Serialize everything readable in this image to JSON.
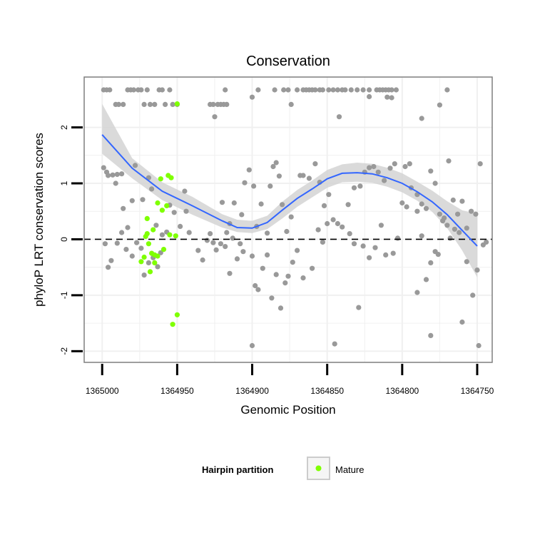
{
  "chart_data": {
    "type": "scatter",
    "title": "Conservation",
    "xlabel": "Genomic Position",
    "ylabel": "phyloP LRT conservation scores",
    "xlim": [
      1365012,
      1364740
    ],
    "xreversed": true,
    "ylim": [
      -2.2,
      2.9
    ],
    "xticks": [
      1365000,
      1364950,
      1364900,
      1364850,
      1364800,
      1364750
    ],
    "xtick_labels": [
      "1365000",
      "1364950",
      "1364900",
      "1364850",
      "1364800",
      "1364750"
    ],
    "yticks": [
      -2,
      -1,
      0,
      1,
      2
    ],
    "ytick_labels": [
      "-2",
      "-1",
      "0",
      "1",
      "2"
    ],
    "grid": true,
    "reference_line": {
      "y": 0,
      "style": "dashed"
    },
    "legend": {
      "title": "Hairpin partition",
      "placement": "bottom",
      "entries": [
        {
          "label": "Mature",
          "color": "#7fff00"
        }
      ]
    },
    "colors": {
      "background_points": "#999999",
      "mature_points": "#7fff00",
      "smooth_line": "#3366ff",
      "confidence_band": "#d3d3d3",
      "grid": "#f0f0f0"
    },
    "series": [
      {
        "role": "background",
        "points": [
          [
            1364999,
            2.67
          ],
          [
            1364997,
            2.67
          ],
          [
            1364995,
            2.67
          ],
          [
            1364991,
            2.41
          ],
          [
            1364989,
            2.41
          ],
          [
            1364986,
            2.41
          ],
          [
            1364983,
            2.67
          ],
          [
            1364981,
            2.67
          ],
          [
            1364979,
            2.67
          ],
          [
            1364976,
            2.67
          ],
          [
            1364974,
            2.67
          ],
          [
            1364972,
            2.41
          ],
          [
            1364970,
            2.67
          ],
          [
            1364968,
            2.41
          ],
          [
            1364965,
            2.41
          ],
          [
            1364962,
            2.67
          ],
          [
            1364960,
            2.67
          ],
          [
            1364958,
            2.41
          ],
          [
            1364955,
            2.67
          ],
          [
            1364953,
            2.41
          ],
          [
            1364950,
            2.41
          ],
          [
            1364928,
            2.41
          ],
          [
            1364926,
            2.41
          ],
          [
            1364925,
            2.19
          ],
          [
            1364923,
            2.41
          ],
          [
            1364921,
            2.41
          ],
          [
            1364919,
            2.41
          ],
          [
            1364917,
            2.41
          ],
          [
            1364896,
            2.67
          ],
          [
            1364885,
            2.67
          ],
          [
            1364900,
            2.54
          ],
          [
            1364918,
            2.67
          ],
          [
            1364879,
            2.67
          ],
          [
            1364876,
            2.67
          ],
          [
            1364874,
            2.41
          ],
          [
            1364870,
            2.67
          ],
          [
            1364866,
            2.67
          ],
          [
            1364864,
            2.67
          ],
          [
            1364862,
            2.67
          ],
          [
            1364860,
            2.67
          ],
          [
            1364858,
            2.67
          ],
          [
            1364855,
            2.67
          ],
          [
            1364853,
            2.67
          ],
          [
            1364849,
            2.67
          ],
          [
            1364846,
            2.67
          ],
          [
            1364843,
            2.67
          ],
          [
            1364840,
            2.67
          ],
          [
            1364838,
            2.67
          ],
          [
            1364834,
            2.67
          ],
          [
            1364830,
            2.67
          ],
          [
            1364826,
            2.67
          ],
          [
            1364822,
            2.67
          ],
          [
            1364817,
            2.67
          ],
          [
            1364815,
            2.67
          ],
          [
            1364813,
            2.67
          ],
          [
            1364811,
            2.67
          ],
          [
            1364809,
            2.67
          ],
          [
            1364807,
            2.67
          ],
          [
            1364804,
            2.67
          ],
          [
            1364842,
            2.19
          ],
          [
            1364787,
            2.16
          ],
          [
            1364810,
            2.54
          ],
          [
            1364822,
            2.55
          ],
          [
            1364807,
            2.53
          ],
          [
            1364770,
            2.67
          ],
          [
            1364775,
            2.4
          ],
          [
            1364999,
            1.28
          ],
          [
            1364997,
            1.2
          ],
          [
            1364996,
            1.14
          ],
          [
            1364993,
            1.15
          ],
          [
            1364991,
            1.0
          ],
          [
            1364990,
            1.16
          ],
          [
            1364987,
            1.17
          ],
          [
            1364986,
            0.55
          ],
          [
            1364983,
            0.21
          ],
          [
            1364980,
            0.69
          ],
          [
            1364978,
            1.32
          ],
          [
            1364973,
            0.71
          ],
          [
            1364969,
            1.1
          ],
          [
            1364967,
            0.9
          ],
          [
            1364964,
            0.25
          ],
          [
            1364960,
            0.08
          ],
          [
            1364957,
            0.13
          ],
          [
            1364955,
            0.61
          ],
          [
            1364952,
            0.48
          ],
          [
            1364998,
            -0.08
          ],
          [
            1364996,
            -0.5
          ],
          [
            1364994,
            -0.38
          ],
          [
            1364990,
            -0.07
          ],
          [
            1364987,
            0.12
          ],
          [
            1364984,
            -0.18
          ],
          [
            1364980,
            -0.3
          ],
          [
            1364977,
            -0.06
          ],
          [
            1364974,
            -0.16
          ],
          [
            1364972,
            -0.64
          ],
          [
            1364969,
            -0.42
          ],
          [
            1364966,
            -0.33
          ],
          [
            1364963,
            -0.49
          ],
          [
            1364961,
            -0.24
          ],
          [
            1364948,
            0.23
          ],
          [
            1364945,
            0.86
          ],
          [
            1364944,
            0.5
          ],
          [
            1364942,
            0.12
          ],
          [
            1364936,
            -0.2
          ],
          [
            1364933,
            -0.37
          ],
          [
            1364930,
            -0.02
          ],
          [
            1364928,
            0.1
          ],
          [
            1364926,
            -0.06
          ],
          [
            1364924,
            -0.19
          ],
          [
            1364921,
            -0.08
          ],
          [
            1364918,
            -0.13
          ],
          [
            1364915,
            -0.61
          ],
          [
            1364913,
            0.02
          ],
          [
            1364910,
            -0.35
          ],
          [
            1364908,
            -0.08
          ],
          [
            1364906,
            -0.22
          ],
          [
            1364920,
            0.66
          ],
          [
            1364917,
            0.12
          ],
          [
            1364915,
            0.28
          ],
          [
            1364912,
            0.65
          ],
          [
            1364907,
            0.44
          ],
          [
            1364905,
            1.01
          ],
          [
            1364902,
            1.24
          ],
          [
            1364899,
            0.95
          ],
          [
            1364897,
            0.23
          ],
          [
            1364894,
            0.63
          ],
          [
            1364890,
            0.11
          ],
          [
            1364888,
            0.95
          ],
          [
            1364886,
            1.3
          ],
          [
            1364884,
            1.37
          ],
          [
            1364882,
            1.13
          ],
          [
            1364880,
            0.62
          ],
          [
            1364877,
            0.14
          ],
          [
            1364874,
            0.4
          ],
          [
            1364900,
            -0.3
          ],
          [
            1364898,
            -0.83
          ],
          [
            1364896,
            -0.9
          ],
          [
            1364893,
            -0.52
          ],
          [
            1364890,
            -0.28
          ],
          [
            1364887,
            -1.05
          ],
          [
            1364884,
            -0.63
          ],
          [
            1364881,
            -1.23
          ],
          [
            1364878,
            -0.78
          ],
          [
            1364876,
            -0.66
          ],
          [
            1364873,
            -0.41
          ],
          [
            1364870,
            -0.2
          ],
          [
            1364866,
            -0.69
          ],
          [
            1364860,
            -0.52
          ],
          [
            1364856,
            0.17
          ],
          [
            1364853,
            -0.05
          ],
          [
            1364850,
            0.28
          ],
          [
            1364900,
            -1.9
          ],
          [
            1364845,
            -1.87
          ],
          [
            1364868,
            1.14
          ],
          [
            1364866,
            1.14
          ],
          [
            1364862,
            1.09
          ],
          [
            1364858,
            1.35
          ],
          [
            1364855,
            1.02
          ],
          [
            1364852,
            0.6
          ],
          [
            1364849,
            0.8
          ],
          [
            1364846,
            0.35
          ],
          [
            1364843,
            0.28
          ],
          [
            1364840,
            0.22
          ],
          [
            1364836,
            0.62
          ],
          [
            1364832,
            0.92
          ],
          [
            1364828,
            0.95
          ],
          [
            1364825,
            1.2
          ],
          [
            1364822,
            1.28
          ],
          [
            1364819,
            1.3
          ],
          [
            1364816,
            1.2
          ],
          [
            1364812,
            1.05
          ],
          [
            1364808,
            1.27
          ],
          [
            1364805,
            1.35
          ],
          [
            1364835,
            0.1
          ],
          [
            1364832,
            -0.08
          ],
          [
            1364829,
            -1.22
          ],
          [
            1364826,
            -0.12
          ],
          [
            1364822,
            -0.33
          ],
          [
            1364818,
            -0.15
          ],
          [
            1364814,
            0.25
          ],
          [
            1364811,
            -0.28
          ],
          [
            1364806,
            -0.25
          ],
          [
            1364803,
            0.02
          ],
          [
            1364800,
            0.65
          ],
          [
            1364797,
            0.58
          ],
          [
            1364794,
            0.92
          ],
          [
            1364790,
            0.5
          ],
          [
            1364787,
            0.06
          ],
          [
            1364784,
            -0.72
          ],
          [
            1364781,
            -0.42
          ],
          [
            1364778,
            -0.22
          ],
          [
            1364776,
            -0.27
          ],
          [
            1364773,
            0.33
          ],
          [
            1364770,
            0.25
          ],
          [
            1364768,
            0.02
          ],
          [
            1364765,
            0.18
          ],
          [
            1364762,
            0.12
          ],
          [
            1364798,
            1.3
          ],
          [
            1364795,
            1.35
          ],
          [
            1364790,
            0.8
          ],
          [
            1364787,
            0.63
          ],
          [
            1364784,
            0.55
          ],
          [
            1364781,
            1.22
          ],
          [
            1364778,
            1.0
          ],
          [
            1364775,
            0.45
          ],
          [
            1364772,
            0.38
          ],
          [
            1364769,
            1.4
          ],
          [
            1364766,
            0.7
          ],
          [
            1364763,
            0.45
          ],
          [
            1364760,
            0.68
          ],
          [
            1364757,
            0.2
          ],
          [
            1364754,
            0.5
          ],
          [
            1364751,
            0.45
          ],
          [
            1364790,
            -0.95
          ],
          [
            1364781,
            -1.72
          ],
          [
            1364760,
            -1.48
          ],
          [
            1364757,
            -0.4
          ],
          [
            1364753,
            -1.0
          ],
          [
            1364750,
            -0.55
          ],
          [
            1364749,
            -1.9
          ],
          [
            1364748,
            1.35
          ],
          [
            1364746,
            -0.1
          ],
          [
            1364744,
            -0.05
          ]
        ]
      },
      {
        "name": "Mature",
        "points": [
          [
            1364950,
            2.42
          ],
          [
            1364954,
            1.1
          ],
          [
            1364956,
            1.14
          ],
          [
            1364961,
            1.08
          ],
          [
            1364957,
            0.6
          ],
          [
            1364960,
            0.52
          ],
          [
            1364963,
            0.65
          ],
          [
            1364966,
            0.17
          ],
          [
            1364970,
            0.37
          ],
          [
            1364955,
            0.08
          ],
          [
            1364951,
            0.06
          ],
          [
            1364959,
            -0.18
          ],
          [
            1364963,
            -0.3
          ],
          [
            1364965,
            -0.42
          ],
          [
            1364967,
            -0.25
          ],
          [
            1364968,
            -0.58
          ],
          [
            1364969,
            -0.08
          ],
          [
            1364971,
            0.05
          ],
          [
            1364972,
            -0.32
          ],
          [
            1364974,
            -0.4
          ],
          [
            1364970,
            0.1
          ],
          [
            1364965,
            -0.28
          ],
          [
            1364950,
            -1.35
          ],
          [
            1364953,
            -1.52
          ]
        ]
      }
    ],
    "smooth": {
      "x": [
        1365000,
        1364980,
        1364960,
        1364940,
        1364920,
        1364910,
        1364900,
        1364890,
        1364880,
        1364870,
        1364860,
        1364850,
        1364840,
        1364830,
        1364820,
        1364810,
        1364800,
        1364790,
        1364780,
        1364770,
        1364760,
        1364750
      ],
      "y": [
        1.87,
        1.27,
        0.86,
        0.6,
        0.33,
        0.21,
        0.2,
        0.3,
        0.52,
        0.73,
        0.9,
        1.08,
        1.18,
        1.19,
        1.17,
        1.1,
        1.0,
        0.85,
        0.67,
        0.44,
        0.16,
        -0.12
      ],
      "lower": [
        1.53,
        1.09,
        0.7,
        0.44,
        0.21,
        0.13,
        0.11,
        0.18,
        0.37,
        0.58,
        0.75,
        0.92,
        1.02,
        1.03,
        1.01,
        0.94,
        0.84,
        0.69,
        0.49,
        0.2,
        -0.2,
        -0.68
      ],
      "upper": [
        2.42,
        1.45,
        1.02,
        0.76,
        0.45,
        0.35,
        0.33,
        0.42,
        0.67,
        0.88,
        1.05,
        1.24,
        1.34,
        1.37,
        1.35,
        1.28,
        1.18,
        1.03,
        0.87,
        0.68,
        0.52,
        0.45
      ]
    }
  }
}
